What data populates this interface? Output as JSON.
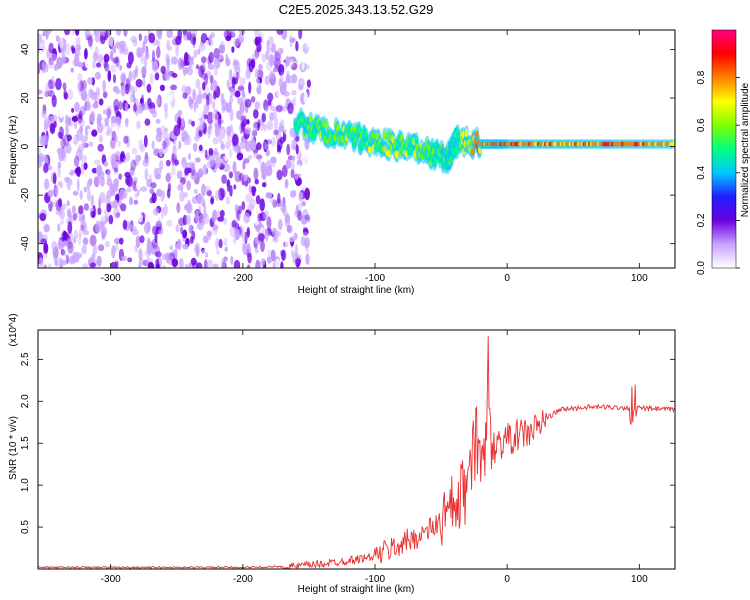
{
  "title": "C2E5.2025.343.13.52.G29",
  "chart_data": [
    {
      "type": "heatmap",
      "title": "C2E5.2025.343.13.52.G29",
      "xlabel": "Height of straight line (km)",
      "ylabel": "Frequency (Hz)",
      "xlim": [
        -355,
        127
      ],
      "ylim": [
        -50,
        48
      ],
      "xticks": [
        -300,
        -200,
        -100,
        0,
        100
      ],
      "yticks": [
        -40,
        -20,
        0,
        20,
        40
      ],
      "colorbar": {
        "label": "Normalized spectral amplitude",
        "range": [
          0,
          1
        ],
        "ticks": [
          "0.0",
          "0.2",
          "0.4",
          "0.6",
          "0.8"
        ],
        "colormap": [
          "#ffffff",
          "#c8a2ff",
          "#6b00e0",
          "#2020ff",
          "#00c8ff",
          "#00ff80",
          "#80ff00",
          "#ffff00",
          "#ff8000",
          "#ff0000",
          "#ff0080"
        ]
      },
      "regions": [
        {
          "name": "noise",
          "x_range": [
            -355,
            -150
          ],
          "f_range": [
            -50,
            48
          ],
          "amplitude": 0.12
        },
        {
          "name": "signal-track",
          "points": [
            {
              "x": -160,
              "f": 10,
              "amp": 0.5
            },
            {
              "x": -140,
              "f": 6,
              "amp": 0.6
            },
            {
              "x": -120,
              "f": 4,
              "amp": 0.55
            },
            {
              "x": -100,
              "f": 2,
              "amp": 0.6
            },
            {
              "x": -80,
              "f": 0,
              "amp": 0.6
            },
            {
              "x": -60,
              "f": -2,
              "amp": 0.55
            },
            {
              "x": -45,
              "f": -5,
              "amp": 0.5
            },
            {
              "x": -38,
              "f": 2,
              "amp": 0.55
            },
            {
              "x": -20,
              "f": 1,
              "amp": 0.8
            },
            {
              "x": 0,
              "f": 1,
              "amp": 0.85
            },
            {
              "x": 40,
              "f": 1,
              "amp": 0.75
            },
            {
              "x": 80,
              "f": 1,
              "amp": 0.85
            },
            {
              "x": 127,
              "f": 1,
              "amp": 0.8
            }
          ]
        }
      ]
    },
    {
      "type": "line",
      "xlabel": "Height of straight line (km)",
      "ylabel": "SNR (10 * v/v)",
      "y_multiplier": "(x10^4)",
      "xlim": [
        -355,
        127
      ],
      "ylim": [
        0,
        2.85
      ],
      "xticks": [
        -300,
        -200,
        -100,
        0,
        100
      ],
      "yticks": [
        0.5,
        1.0,
        1.5,
        2.0,
        2.5
      ],
      "color": "#e03030",
      "series": [
        {
          "name": "SNR",
          "points": [
            [
              -355,
              0.02
            ],
            [
              -300,
              0.02
            ],
            [
              -200,
              0.02
            ],
            [
              -160,
              0.03
            ],
            [
              -130,
              0.08
            ],
            [
              -100,
              0.15
            ],
            [
              -80,
              0.3
            ],
            [
              -60,
              0.45
            ],
            [
              -40,
              0.7
            ],
            [
              -30,
              1.0
            ],
            [
              -25,
              1.4
            ],
            [
              -20,
              1.3
            ],
            [
              -15,
              1.7
            ],
            [
              -10,
              1.45
            ],
            [
              -5,
              1.5
            ],
            [
              0,
              1.55
            ],
            [
              10,
              1.6
            ],
            [
              20,
              1.65
            ],
            [
              30,
              1.8
            ],
            [
              40,
              1.9
            ],
            [
              60,
              1.93
            ],
            [
              80,
              1.93
            ],
            [
              95,
              1.92
            ],
            [
              127,
              1.9
            ]
          ]
        }
      ]
    }
  ]
}
